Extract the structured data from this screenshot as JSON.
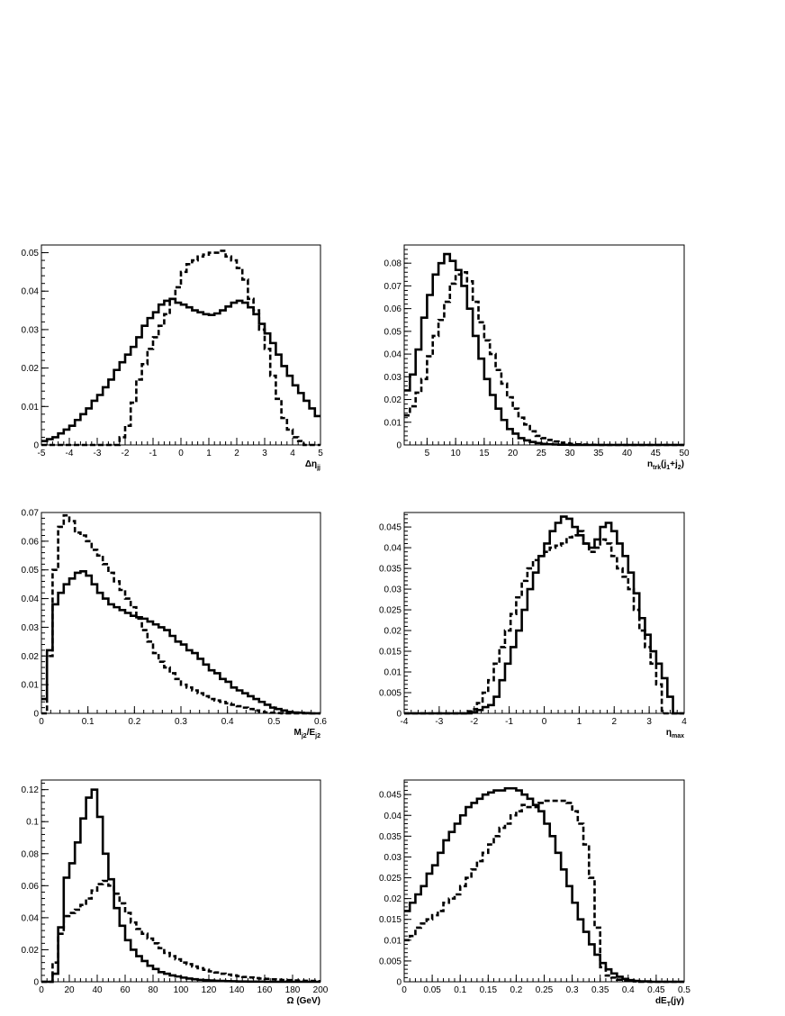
{
  "chart_data": [
    {
      "type": "line",
      "xlabel": "Δη",
      "xlabel_sub": "jj",
      "xlim": [
        -5,
        5
      ],
      "ylim": [
        0,
        0.052
      ],
      "xticks": [
        -5,
        -4,
        -3,
        -2,
        -1,
        0,
        1,
        2,
        3,
        4,
        5
      ],
      "yticks": [
        0,
        0.01,
        0.02,
        0.03,
        0.04,
        0.05
      ],
      "ytick_labels": [
        "0",
        "0.01",
        "0.02",
        "0.03",
        "0.04",
        "0.05"
      ],
      "bins": 50,
      "series": [
        {
          "style": "solid",
          "values": [
            0.001,
            0.0015,
            0.002,
            0.003,
            0.004,
            0.005,
            0.0065,
            0.008,
            0.0095,
            0.0115,
            0.013,
            0.015,
            0.017,
            0.0195,
            0.0215,
            0.0235,
            0.0255,
            0.028,
            0.031,
            0.033,
            0.0345,
            0.0365,
            0.0375,
            0.038,
            0.037,
            0.0365,
            0.0358,
            0.035,
            0.0345,
            0.034,
            0.0338,
            0.0342,
            0.035,
            0.036,
            0.037,
            0.0375,
            0.037,
            0.0358,
            0.034,
            0.0315,
            0.029,
            0.0265,
            0.0235,
            0.0205,
            0.018,
            0.0155,
            0.0135,
            0.0115,
            0.0095,
            0.0075
          ]
        },
        {
          "style": "dashed",
          "values": [
            0,
            0,
            0,
            0,
            0,
            0,
            0,
            0,
            0,
            0,
            0,
            0,
            0,
            0,
            0.002,
            0.005,
            0.011,
            0.017,
            0.021,
            0.025,
            0.028,
            0.031,
            0.034,
            0.038,
            0.041,
            0.045,
            0.047,
            0.048,
            0.049,
            0.0495,
            0.05,
            0.05,
            0.0505,
            0.049,
            0.048,
            0.046,
            0.043,
            0.038,
            0.035,
            0.03,
            0.025,
            0.018,
            0.012,
            0.007,
            0.004,
            0.002,
            0.001,
            0,
            0,
            0
          ]
        }
      ]
    },
    {
      "type": "line",
      "xlabel": "n",
      "xlabel_sub": "trk",
      "xlabel_rest": "(j",
      "xlabel_sub2": "1",
      "xlabel_rest2": "+j",
      "xlabel_sub3": "2",
      "xlabel_rest3": ")",
      "xlim": [
        1,
        50
      ],
      "ylim": [
        0,
        0.088
      ],
      "xticks": [
        5,
        10,
        15,
        20,
        25,
        30,
        35,
        40,
        45,
        50
      ],
      "yticks": [
        0,
        0.01,
        0.02,
        0.03,
        0.04,
        0.05,
        0.06,
        0.07,
        0.08
      ],
      "ytick_labels": [
        "0",
        "0.01",
        "0.02",
        "0.03",
        "0.04",
        "0.05",
        "0.06",
        "0.07",
        "0.08"
      ],
      "bins": 49,
      "series": [
        {
          "style": "solid",
          "values": [
            0.024,
            0.031,
            0.042,
            0.056,
            0.066,
            0.075,
            0.08,
            0.084,
            0.081,
            0.077,
            0.07,
            0.06,
            0.048,
            0.038,
            0.029,
            0.022,
            0.016,
            0.011,
            0.007,
            0.005,
            0.003,
            0.002,
            0.0013,
            0.0008,
            0.0005,
            0.0003,
            0.0002,
            0.0001,
            0.0001,
            0,
            0,
            0,
            0,
            0,
            0,
            0,
            0,
            0,
            0,
            0,
            0,
            0,
            0,
            0,
            0,
            0,
            0,
            0,
            0
          ]
        },
        {
          "style": "dashed",
          "values": [
            0.013,
            0.017,
            0.023,
            0.029,
            0.039,
            0.048,
            0.055,
            0.063,
            0.071,
            0.075,
            0.076,
            0.072,
            0.063,
            0.054,
            0.046,
            0.04,
            0.033,
            0.027,
            0.021,
            0.016,
            0.012,
            0.009,
            0.006,
            0.004,
            0.003,
            0.0022,
            0.0015,
            0.001,
            0.0007,
            0.0005,
            0.0003,
            0.0002,
            0.0001,
            0.0001,
            0,
            0,
            0,
            0,
            0,
            0,
            0,
            0,
            0,
            0,
            0,
            0,
            0,
            0,
            0
          ]
        }
      ]
    },
    {
      "type": "line",
      "xlabel": "M",
      "xlabel_sub": "j2",
      "xlabel_rest": "/E",
      "xlabel_sub2": "j2",
      "xlim": [
        0,
        0.6
      ],
      "ylim": [
        0,
        0.07
      ],
      "xticks": [
        0,
        0.1,
        0.2,
        0.3,
        0.4,
        0.5,
        0.6
      ],
      "yticks": [
        0,
        0.01,
        0.02,
        0.03,
        0.04,
        0.05,
        0.06,
        0.07
      ],
      "ytick_labels": [
        "0",
        "0.01",
        "0.02",
        "0.03",
        "0.04",
        "0.05",
        "0.06",
        "0.07"
      ],
      "bins": 50,
      "series": [
        {
          "style": "solid",
          "values": [
            0.005,
            0.022,
            0.038,
            0.042,
            0.045,
            0.047,
            0.049,
            0.0495,
            0.048,
            0.045,
            0.042,
            0.04,
            0.038,
            0.037,
            0.036,
            0.035,
            0.034,
            0.0335,
            0.033,
            0.032,
            0.031,
            0.03,
            0.029,
            0.027,
            0.025,
            0.024,
            0.022,
            0.021,
            0.019,
            0.017,
            0.015,
            0.014,
            0.012,
            0.011,
            0.009,
            0.008,
            0.007,
            0.006,
            0.005,
            0.004,
            0.003,
            0.002,
            0.0015,
            0.001,
            0.0005,
            0.0003,
            0.0002,
            0.0001,
            0,
            0
          ]
        },
        {
          "style": "dashed",
          "values": [
            0,
            0.02,
            0.05,
            0.065,
            0.069,
            0.067,
            0.063,
            0.062,
            0.06,
            0.057,
            0.055,
            0.052,
            0.049,
            0.046,
            0.043,
            0.04,
            0.037,
            0.033,
            0.029,
            0.025,
            0.021,
            0.018,
            0.016,
            0.014,
            0.012,
            0.01,
            0.009,
            0.008,
            0.007,
            0.006,
            0.005,
            0.0045,
            0.004,
            0.0035,
            0.003,
            0.0025,
            0.002,
            0.0015,
            0.001,
            0.0005,
            0.0003,
            0.0002,
            0.0001,
            0,
            0,
            0,
            0,
            0,
            0,
            0
          ]
        }
      ]
    },
    {
      "type": "line",
      "xlabel": "η",
      "xlabel_sub": "max",
      "xlim": [
        -4,
        4
      ],
      "ylim": [
        0,
        0.0485
      ],
      "xticks": [
        -4,
        -3,
        -2,
        -1,
        0,
        1,
        2,
        3,
        4
      ],
      "yticks": [
        0,
        0.005,
        0.01,
        0.015,
        0.02,
        0.025,
        0.03,
        0.035,
        0.04,
        0.045
      ],
      "ytick_labels": [
        "0",
        "0.005",
        "0.01",
        "0.015",
        "0.02",
        "0.025",
        "0.03",
        "0.035",
        "0.04",
        "0.045"
      ],
      "bins": 50,
      "series": [
        {
          "style": "solid",
          "values": [
            0,
            0,
            0,
            0,
            0,
            0,
            0,
            0,
            0,
            0,
            0,
            0,
            0.0003,
            0.0008,
            0.0015,
            0.002,
            0.004,
            0.008,
            0.012,
            0.016,
            0.02,
            0.025,
            0.03,
            0.034,
            0.038,
            0.041,
            0.044,
            0.046,
            0.0475,
            0.047,
            0.045,
            0.043,
            0.041,
            0.04,
            0.042,
            0.045,
            0.046,
            0.044,
            0.041,
            0.038,
            0.034,
            0.029,
            0.023,
            0.019,
            0.015,
            0.012,
            0.0085,
            0.004,
            0,
            0
          ]
        },
        {
          "style": "dashed",
          "values": [
            0,
            0,
            0,
            0,
            0,
            0,
            0,
            0,
            0,
            0,
            0,
            0.0005,
            0.001,
            0.0025,
            0.005,
            0.008,
            0.012,
            0.016,
            0.02,
            0.024,
            0.028,
            0.032,
            0.035,
            0.037,
            0.038,
            0.039,
            0.04,
            0.0405,
            0.041,
            0.0425,
            0.043,
            0.044,
            0.041,
            0.039,
            0.04,
            0.042,
            0.041,
            0.038,
            0.035,
            0.033,
            0.03,
            0.025,
            0.02,
            0.016,
            0.012,
            0.007,
            0,
            0,
            0,
            0
          ]
        }
      ]
    },
    {
      "type": "line",
      "xlabel": "Ω (GeV)",
      "xlim": [
        0,
        200
      ],
      "ylim": [
        0,
        0.126
      ],
      "xticks": [
        0,
        20,
        40,
        60,
        80,
        100,
        120,
        140,
        160,
        180,
        200
      ],
      "yticks": [
        0,
        0.02,
        0.04,
        0.06,
        0.08,
        0.1,
        0.12
      ],
      "ytick_labels": [
        "0",
        "0.02",
        "0.04",
        "0.06",
        "0.08",
        "0.1",
        "0.12"
      ],
      "bins": 50,
      "series": [
        {
          "style": "solid",
          "values": [
            0,
            0,
            0.005,
            0.034,
            0.065,
            0.074,
            0.087,
            0.102,
            0.115,
            0.12,
            0.103,
            0.08,
            0.064,
            0.046,
            0.035,
            0.026,
            0.02,
            0.016,
            0.013,
            0.01,
            0.008,
            0.006,
            0.005,
            0.004,
            0.0033,
            0.0026,
            0.002,
            0.0016,
            0.0012,
            0.001,
            0.0008,
            0.0006,
            0.0005,
            0.0004,
            0.0003,
            0.0002,
            0.0002,
            0.0001,
            0.0001,
            0.0001,
            0,
            0,
            0,
            0,
            0,
            0,
            0,
            0,
            0,
            0
          ]
        },
        {
          "style": "dashed",
          "values": [
            0,
            0,
            0.012,
            0.03,
            0.041,
            0.043,
            0.045,
            0.048,
            0.052,
            0.057,
            0.061,
            0.063,
            0.06,
            0.055,
            0.049,
            0.043,
            0.037,
            0.033,
            0.03,
            0.027,
            0.024,
            0.021,
            0.018,
            0.016,
            0.014,
            0.012,
            0.011,
            0.0095,
            0.0085,
            0.0075,
            0.0065,
            0.0058,
            0.005,
            0.0045,
            0.004,
            0.0035,
            0.003,
            0.0027,
            0.0023,
            0.002,
            0.0018,
            0.0015,
            0.0013,
            0.0011,
            0.001,
            0.0008,
            0.0007,
            0.0006,
            0.0005,
            0.0004
          ]
        }
      ]
    },
    {
      "type": "line",
      "xlabel": "dE",
      "xlabel_sub": "T",
      "xlabel_rest": "(jγ)",
      "xlim": [
        0,
        0.5
      ],
      "ylim": [
        0,
        0.0485
      ],
      "xticks": [
        0,
        0.05,
        0.1,
        0.15,
        0.2,
        0.25,
        0.3,
        0.35,
        0.4,
        0.45,
        0.5
      ],
      "yticks": [
        0,
        0.005,
        0.01,
        0.015,
        0.02,
        0.025,
        0.03,
        0.035,
        0.04,
        0.045
      ],
      "ytick_labels": [
        "0",
        "0.005",
        "0.01",
        "0.015",
        "0.02",
        "0.025",
        "0.03",
        "0.035",
        "0.04",
        "0.045"
      ],
      "bins": 50,
      "series": [
        {
          "style": "solid",
          "values": [
            0.017,
            0.019,
            0.021,
            0.023,
            0.026,
            0.028,
            0.031,
            0.034,
            0.036,
            0.038,
            0.04,
            0.042,
            0.043,
            0.044,
            0.045,
            0.0455,
            0.046,
            0.046,
            0.0465,
            0.0465,
            0.046,
            0.045,
            0.044,
            0.0425,
            0.041,
            0.038,
            0.035,
            0.031,
            0.027,
            0.023,
            0.019,
            0.015,
            0.012,
            0.009,
            0.0065,
            0.0045,
            0.003,
            0.002,
            0.0012,
            0.0007,
            0.0004,
            0.0002,
            0.0001,
            0.0001,
            0,
            0,
            0,
            0,
            0,
            0
          ]
        },
        {
          "style": "dashed",
          "values": [
            0.01,
            0.011,
            0.013,
            0.014,
            0.015,
            0.016,
            0.017,
            0.019,
            0.02,
            0.021,
            0.023,
            0.025,
            0.027,
            0.029,
            0.031,
            0.033,
            0.035,
            0.037,
            0.038,
            0.04,
            0.041,
            0.0425,
            0.042,
            0.042,
            0.043,
            0.0435,
            0.0435,
            0.0435,
            0.0435,
            0.043,
            0.041,
            0.038,
            0.033,
            0.025,
            0.013,
            0.0035,
            0.0015,
            0.001,
            0.0005,
            0.0003,
            0.0002,
            0.0001,
            0,
            0,
            0,
            0,
            0,
            0,
            0,
            0
          ]
        }
      ]
    }
  ]
}
